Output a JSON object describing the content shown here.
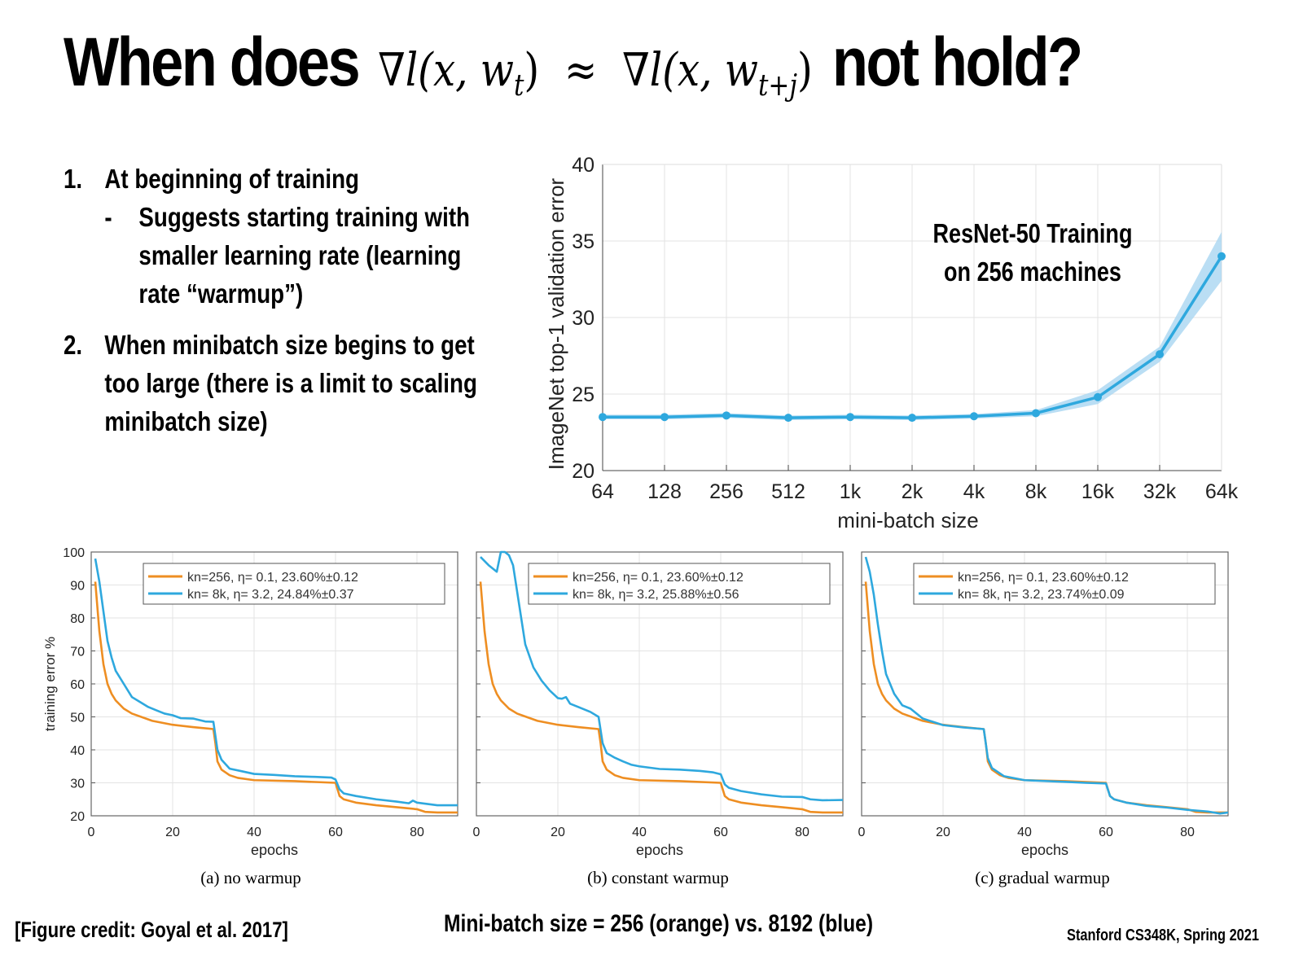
{
  "title": {
    "prefix": "When does",
    "math_lhs": "∇l(x, w",
    "math_lhs_sub": "t",
    "approx": "≈",
    "math_rhs": "∇l(x, w",
    "math_rhs_sub": "t+j",
    "suffix": "not hold?"
  },
  "bullets": [
    {
      "num": "1.",
      "text": "At beginning of training",
      "sub": {
        "dash": "-",
        "text": "Suggests starting training with smaller learning rate (learning rate “warmup”)"
      }
    },
    {
      "num": "2.",
      "text": "When minibatch size begins to get too large (there is a limit to scaling minibatch size)"
    }
  ],
  "footer": {
    "credit": "[Figure credit: Goyal et al. 2017]",
    "center": "Mini-batch size = 256 (orange) vs. 8192 (blue)",
    "course": "Stanford CS348K, Spring 2021"
  },
  "colors": {
    "orange": "#EE8E22",
    "blue": "#2EA8DE",
    "band": "#A9D6F1",
    "grid": "#E3E3E3"
  },
  "chart_data": [
    {
      "type": "line",
      "annotation": [
        "ResNet-50 Training",
        "on 256 machines"
      ],
      "xlabel": "mini-batch size",
      "ylabel": "ImageNet top-1 validation error",
      "categories": [
        "64",
        "128",
        "256",
        "512",
        "1k",
        "2k",
        "4k",
        "8k",
        "16k",
        "32k",
        "64k"
      ],
      "values": [
        23.5,
        23.5,
        23.6,
        23.45,
        23.5,
        23.45,
        23.55,
        23.75,
        24.8,
        27.6,
        34.0
      ],
      "error": [
        0.15,
        0.15,
        0.15,
        0.15,
        0.15,
        0.15,
        0.15,
        0.2,
        0.45,
        0.5,
        1.6
      ],
      "ylim": [
        20,
        40
      ],
      "yticks": [
        20,
        25,
        30,
        35,
        40
      ],
      "grid": true
    },
    {
      "type": "line",
      "caption": "(a) no warmup",
      "xlabel": "epochs",
      "ylabel": "training error %",
      "xlim": [
        0,
        90
      ],
      "ylim": [
        20,
        100
      ],
      "xticks": [
        0,
        20,
        40,
        60,
        80
      ],
      "yticks": [
        20,
        30,
        40,
        50,
        60,
        70,
        80,
        90,
        100
      ],
      "grid": true,
      "legend": "top-right",
      "series": [
        {
          "name": "kn=256, η= 0.1, 23.60%±0.12",
          "color": "orange",
          "points": [
            [
              1,
              91
            ],
            [
              2,
              76
            ],
            [
              3,
              66
            ],
            [
              4,
              60
            ],
            [
              5,
              57
            ],
            [
              6,
              55
            ],
            [
              8,
              52.5
            ],
            [
              10,
              51
            ],
            [
              15,
              48.8
            ],
            [
              20,
              47.6
            ],
            [
              25,
              46.9
            ],
            [
              30,
              46.3
            ],
            [
              30.5,
              42
            ],
            [
              31,
              36.5
            ],
            [
              32,
              34
            ],
            [
              34,
              32.3
            ],
            [
              36,
              31.5
            ],
            [
              40,
              30.8
            ],
            [
              50,
              30.5
            ],
            [
              60,
              30
            ],
            [
              61,
              26
            ],
            [
              62,
              25
            ],
            [
              65,
              24
            ],
            [
              70,
              23.2
            ],
            [
              75,
              22.6
            ],
            [
              80,
              22
            ],
            [
              82,
              21.2
            ],
            [
              85,
              21
            ],
            [
              90,
              21
            ]
          ]
        },
        {
          "name": "kn= 8k, η= 3.2, 24.84%±0.37",
          "color": "blue",
          "points": [
            [
              1,
              98
            ],
            [
              2,
              91
            ],
            [
              3,
              82
            ],
            [
              4,
              73
            ],
            [
              5,
              68
            ],
            [
              6,
              64
            ],
            [
              8,
              60
            ],
            [
              10,
              56
            ],
            [
              12,
              54.5
            ],
            [
              14,
              53
            ],
            [
              16,
              52
            ],
            [
              18,
              51
            ],
            [
              20,
              50.5
            ],
            [
              22,
              49.6
            ],
            [
              25,
              49.5
            ],
            [
              28,
              48.6
            ],
            [
              30,
              48.5
            ],
            [
              31,
              40
            ],
            [
              32,
              37
            ],
            [
              34,
              34.3
            ],
            [
              37,
              33.5
            ],
            [
              40,
              32.7
            ],
            [
              45,
              32.4
            ],
            [
              50,
              32
            ],
            [
              55,
              31.8
            ],
            [
              59,
              31.6
            ],
            [
              60,
              31
            ],
            [
              61,
              28
            ],
            [
              62,
              26.8
            ],
            [
              65,
              26
            ],
            [
              70,
              25
            ],
            [
              75,
              24.3
            ],
            [
              78,
              23.8
            ],
            [
              79,
              24.6
            ],
            [
              80,
              24
            ],
            [
              85,
              23.2
            ],
            [
              90,
              23.2
            ]
          ]
        }
      ]
    },
    {
      "type": "line",
      "caption": "(b) constant warmup",
      "xlabel": "epochs",
      "xlim": [
        0,
        90
      ],
      "ylim": [
        20,
        100
      ],
      "xticks": [
        0,
        20,
        40,
        60,
        80
      ],
      "grid": true,
      "legend": "top-right",
      "series": [
        {
          "name": "kn=256, η= 0.1, 23.60%±0.12",
          "color": "orange",
          "points": [
            [
              1,
              91
            ],
            [
              2,
              76
            ],
            [
              3,
              66
            ],
            [
              4,
              60
            ],
            [
              5,
              57
            ],
            [
              6,
              55
            ],
            [
              8,
              52.5
            ],
            [
              10,
              51
            ],
            [
              15,
              48.8
            ],
            [
              20,
              47.6
            ],
            [
              25,
              46.9
            ],
            [
              30,
              46.3
            ],
            [
              30.5,
              42
            ],
            [
              31,
              36.5
            ],
            [
              32,
              34
            ],
            [
              34,
              32.3
            ],
            [
              36,
              31.5
            ],
            [
              40,
              30.8
            ],
            [
              50,
              30.5
            ],
            [
              60,
              30
            ],
            [
              61,
              26
            ],
            [
              62,
              25
            ],
            [
              65,
              24
            ],
            [
              70,
              23.2
            ],
            [
              75,
              22.6
            ],
            [
              80,
              22
            ],
            [
              82,
              21.2
            ],
            [
              85,
              21
            ],
            [
              90,
              21
            ]
          ]
        },
        {
          "name": "kn= 8k, η= 3.2, 25.88%±0.56",
          "color": "blue",
          "points": [
            [
              1,
              98.5
            ],
            [
              3,
              96
            ],
            [
              5,
              94
            ],
            [
              6,
              100
            ],
            [
              7,
              100
            ],
            [
              8,
              99
            ],
            [
              9,
              96
            ],
            [
              10,
              88
            ],
            [
              12,
              72
            ],
            [
              14,
              65
            ],
            [
              16,
              61
            ],
            [
              18,
              58
            ],
            [
              20,
              55.7
            ],
            [
              21,
              55.5
            ],
            [
              22,
              56
            ],
            [
              23,
              54
            ],
            [
              25,
              53
            ],
            [
              28,
              51.5
            ],
            [
              30,
              50
            ],
            [
              31,
              42
            ],
            [
              32,
              39
            ],
            [
              34,
              37.6
            ],
            [
              36,
              36.5
            ],
            [
              38,
              35.5
            ],
            [
              40,
              35
            ],
            [
              45,
              34.2
            ],
            [
              50,
              34
            ],
            [
              55,
              33.6
            ],
            [
              58,
              33.2
            ],
            [
              60,
              32.6
            ],
            [
              61,
              29.5
            ],
            [
              62,
              28.5
            ],
            [
              65,
              27.5
            ],
            [
              70,
              26.5
            ],
            [
              75,
              25.8
            ],
            [
              80,
              25.7
            ],
            [
              82,
              25
            ],
            [
              85,
              24.7
            ],
            [
              90,
              24.8
            ]
          ]
        }
      ]
    },
    {
      "type": "line",
      "caption": "(c) gradual warmup",
      "xlabel": "epochs",
      "xlim": [
        0,
        90
      ],
      "ylim": [
        20,
        100
      ],
      "xticks": [
        0,
        20,
        40,
        60,
        80
      ],
      "grid": true,
      "legend": "top-right",
      "series": [
        {
          "name": "kn=256, η= 0.1, 23.60%±0.12",
          "color": "orange",
          "points": [
            [
              1,
              91
            ],
            [
              2,
              76
            ],
            [
              3,
              66
            ],
            [
              4,
              60
            ],
            [
              5,
              57
            ],
            [
              6,
              55
            ],
            [
              8,
              52.5
            ],
            [
              10,
              51
            ],
            [
              15,
              48.8
            ],
            [
              20,
              47.6
            ],
            [
              25,
              46.9
            ],
            [
              30,
              46.3
            ],
            [
              30.5,
              42
            ],
            [
              31,
              36.5
            ],
            [
              32,
              34
            ],
            [
              34,
              32.3
            ],
            [
              36,
              31.5
            ],
            [
              40,
              30.8
            ],
            [
              50,
              30.5
            ],
            [
              60,
              30
            ],
            [
              61,
              26
            ],
            [
              62,
              25
            ],
            [
              65,
              24
            ],
            [
              70,
              23.2
            ],
            [
              75,
              22.6
            ],
            [
              80,
              22
            ],
            [
              82,
              21.2
            ],
            [
              85,
              21
            ],
            [
              90,
              21
            ]
          ]
        },
        {
          "name": "kn= 8k, η= 3.2, 23.74%±0.09",
          "color": "blue",
          "points": [
            [
              1,
              98.5
            ],
            [
              2,
              94
            ],
            [
              3,
              87
            ],
            [
              4,
              78
            ],
            [
              5,
              70
            ],
            [
              6,
              63
            ],
            [
              8,
              57
            ],
            [
              10,
              53.5
            ],
            [
              12,
              52.5
            ],
            [
              15,
              49.5
            ],
            [
              20,
              47.5
            ],
            [
              25,
              46.8
            ],
            [
              30,
              46.3
            ],
            [
              31,
              37.5
            ],
            [
              32,
              34.5
            ],
            [
              35,
              32
            ],
            [
              40,
              30.8
            ],
            [
              50,
              30.3
            ],
            [
              55,
              30
            ],
            [
              60,
              29.8
            ],
            [
              61,
              26
            ],
            [
              62,
              25
            ],
            [
              65,
              24
            ],
            [
              70,
              23
            ],
            [
              75,
              22.5
            ],
            [
              80,
              21.8
            ],
            [
              85,
              21.3
            ],
            [
              88,
              20.7
            ],
            [
              90,
              21
            ]
          ]
        }
      ]
    }
  ]
}
